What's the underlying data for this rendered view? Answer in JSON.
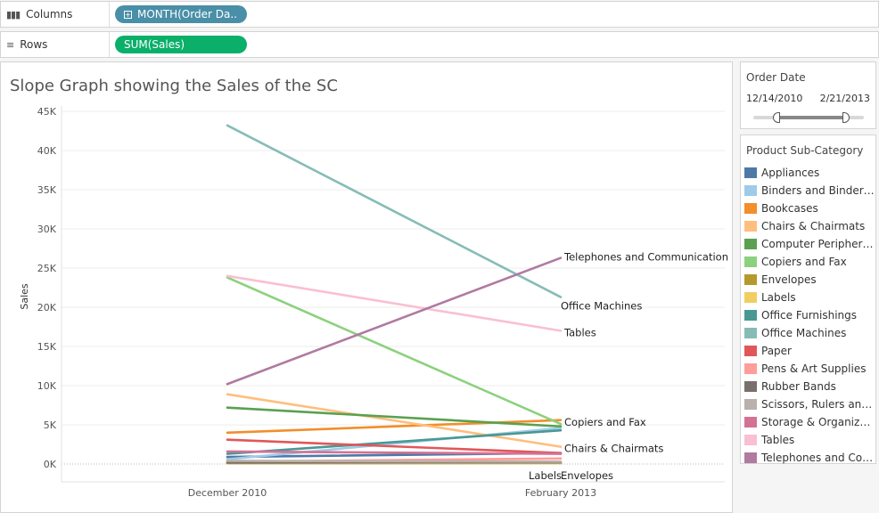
{
  "shelves": {
    "columns": {
      "label": "Columns",
      "pill": "MONTH(Order Da..",
      "icon": "columns-icon"
    },
    "rows": {
      "label": "Rows",
      "pill": "SUM(Sales)",
      "icon": "rows-icon"
    }
  },
  "filter": {
    "title": "Order Date",
    "start": "12/14/2010",
    "end": "2/21/2013",
    "range_fraction": [
      0.21,
      0.83
    ]
  },
  "legend": {
    "title": "Product Sub-Category",
    "items": [
      {
        "label": "Appliances",
        "color": "#4e79a7"
      },
      {
        "label": "Binders and Binder A..",
        "color": "#a0cbe8"
      },
      {
        "label": "Bookcases",
        "color": "#f28e2b"
      },
      {
        "label": "Chairs & Chairmats",
        "color": "#ffbe7d"
      },
      {
        "label": "Computer Peripherals",
        "color": "#59a14f"
      },
      {
        "label": "Copiers and Fax",
        "color": "#8cd17d"
      },
      {
        "label": "Envelopes",
        "color": "#b6992d"
      },
      {
        "label": "Labels",
        "color": "#f1ce63"
      },
      {
        "label": "Office Furnishings",
        "color": "#499894"
      },
      {
        "label": "Office Machines",
        "color": "#86bcb6"
      },
      {
        "label": "Paper",
        "color": "#e15759"
      },
      {
        "label": "Pens & Art Supplies",
        "color": "#ff9d9a"
      },
      {
        "label": "Rubber Bands",
        "color": "#79706e"
      },
      {
        "label": "Scissors, Rulers and ..",
        "color": "#bab0ac"
      },
      {
        "label": "Storage & Organizati..",
        "color": "#d37295"
      },
      {
        "label": "Tables",
        "color": "#fabfd2"
      },
      {
        "label": "Telephones and Com..",
        "color": "#b07aa1"
      }
    ]
  },
  "chart_data": {
    "type": "line",
    "title": "Slope Graph showing the Sales of the SC",
    "xlabel": "",
    "ylabel": "Sales",
    "categories": [
      "December 2010",
      "February 2013"
    ],
    "ylim": [
      0,
      45000
    ],
    "y_ticks": [
      "0K",
      "5K",
      "10K",
      "15K",
      "20K",
      "25K",
      "30K",
      "35K",
      "40K",
      "45K"
    ],
    "grid": true,
    "series": [
      {
        "name": "Appliances",
        "values": [
          900,
          1400
        ],
        "color": "#4e79a7",
        "label": ""
      },
      {
        "name": "Binders and Binder Accessories",
        "values": [
          600,
          4600
        ],
        "color": "#a0cbe8",
        "label": ""
      },
      {
        "name": "Bookcases",
        "values": [
          4000,
          5600
        ],
        "color": "#f28e2b",
        "label": ""
      },
      {
        "name": "Chairs & Chairmats",
        "values": [
          8900,
          2200
        ],
        "color": "#ffbe7d",
        "label": "Chairs & Chairmats"
      },
      {
        "name": "Computer Peripherals",
        "values": [
          7200,
          4800
        ],
        "color": "#59a14f",
        "label": ""
      },
      {
        "name": "Copiers and Fax",
        "values": [
          23800,
          5100
        ],
        "color": "#8cd17d",
        "label": "Copiers and Fax"
      },
      {
        "name": "Envelopes",
        "values": [
          100,
          100
        ],
        "color": "#b6992d",
        "label": "Envelopes"
      },
      {
        "name": "Labels",
        "values": [
          200,
          100
        ],
        "color": "#f1ce63",
        "label": "Labels"
      },
      {
        "name": "Office Furnishings",
        "values": [
          1300,
          4300
        ],
        "color": "#499894",
        "label": ""
      },
      {
        "name": "Office Machines",
        "values": [
          43200,
          21300
        ],
        "color": "#86bcb6",
        "label": "Office Machines"
      },
      {
        "name": "Paper",
        "values": [
          3100,
          1400
        ],
        "color": "#e15759",
        "label": ""
      },
      {
        "name": "Pens & Art Supplies",
        "values": [
          300,
          700
        ],
        "color": "#ff9d9a",
        "label": ""
      },
      {
        "name": "Rubber Bands",
        "values": [
          200,
          200
        ],
        "color": "#79706e",
        "label": ""
      },
      {
        "name": "Scissors, Rulers and Trimmers",
        "values": [
          400,
          300
        ],
        "color": "#bab0ac",
        "label": ""
      },
      {
        "name": "Storage & Organization",
        "values": [
          1600,
          1300
        ],
        "color": "#d37295",
        "label": ""
      },
      {
        "name": "Tables",
        "values": [
          24000,
          17000
        ],
        "color": "#fabfd2",
        "label": "Tables"
      },
      {
        "name": "Telephones and Communication",
        "values": [
          10200,
          26300
        ],
        "color": "#b07aa1",
        "label": "Telephones and Communication"
      }
    ]
  }
}
